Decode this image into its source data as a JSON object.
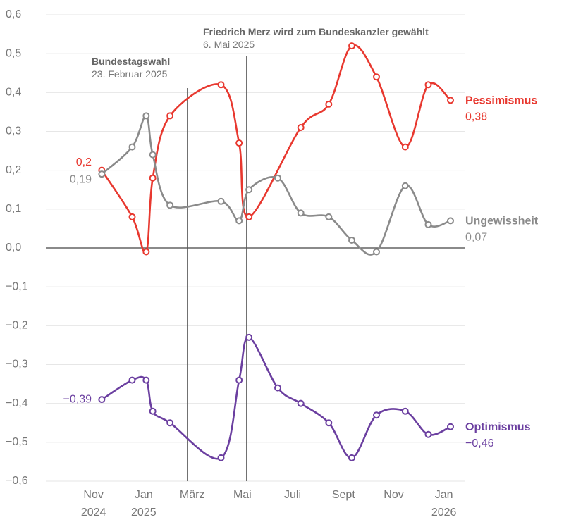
{
  "chart_data": {
    "type": "line",
    "ylim": [
      -0.6,
      0.6
    ],
    "yticks": [
      {
        "value": 0.6,
        "label": "0,6"
      },
      {
        "value": 0.5,
        "label": "0,5"
      },
      {
        "value": 0.4,
        "label": "0,4"
      },
      {
        "value": 0.3,
        "label": "0,3"
      },
      {
        "value": 0.2,
        "label": "0,2"
      },
      {
        "value": 0.1,
        "label": "0,1"
      },
      {
        "value": 0,
        "label": "0,0"
      },
      {
        "value": -0.1,
        "label": "−0,1"
      },
      {
        "value": -0.2,
        "label": "−0,2"
      },
      {
        "value": -0.3,
        "label": "−0,3"
      },
      {
        "value": -0.4,
        "label": "−0,4"
      },
      {
        "value": -0.5,
        "label": "−0,5"
      },
      {
        "value": -0.6,
        "label": "−0,6"
      }
    ],
    "xlim": [
      "2024-09-04",
      "2026-01-27"
    ],
    "xticks": [
      {
        "value": "2024-11-01",
        "label": "Nov\n2024"
      },
      {
        "value": "2025-01-01",
        "label": "Jan\n2025"
      },
      {
        "value": "2025-03-01",
        "label": "März"
      },
      {
        "value": "2025-05-01",
        "label": "Mai"
      },
      {
        "value": "2025-07-01",
        "label": "Juli"
      },
      {
        "value": "2025-09-01",
        "label": "Sept"
      },
      {
        "value": "2025-11-01",
        "label": "Nov"
      },
      {
        "value": "2026-01-01",
        "label": "Jan\n2026"
      }
    ],
    "grid": true,
    "annotations": [
      {
        "title": "Bundestagswahl",
        "text": "23. Februar 2025",
        "x": "2025-02-23"
      },
      {
        "title": "Friedrich Merz wird zum Bundeskanzler gewählt",
        "text": "6. Mai 2025",
        "x": "2025-05-06"
      }
    ],
    "series": [
      {
        "name": "Pessimismus",
        "color": "#e8382f",
        "x": [
          "2024-11-11",
          "2024-12-18",
          "2025-01-04",
          "2025-01-12",
          "2025-02-02",
          "2025-04-05",
          "2025-04-27",
          "2025-05-09",
          "2025-07-11",
          "2025-08-14",
          "2025-09-11",
          "2025-10-11",
          "2025-11-15",
          "2025-12-13",
          "2026-01-09"
        ],
        "values": [
          0.2,
          0.08,
          -0.01,
          0.18,
          0.34,
          0.42,
          0.27,
          0.08,
          0.31,
          0.37,
          0.52,
          0.44,
          0.26,
          0.42,
          0.38
        ],
        "value_labels": [
          "0,2",
          null,
          null,
          null,
          null,
          null,
          null,
          null,
          null,
          null,
          null,
          null,
          null,
          null,
          "0,38"
        ]
      },
      {
        "name": "Ungewissheit",
        "color": "#8a8a8a",
        "x": [
          "2024-11-11",
          "2024-12-18",
          "2025-01-04",
          "2025-01-12",
          "2025-02-02",
          "2025-04-05",
          "2025-04-27",
          "2025-05-09",
          "2025-06-13",
          "2025-07-11",
          "2025-08-14",
          "2025-09-11",
          "2025-10-11",
          "2025-11-15",
          "2025-12-13",
          "2026-01-09"
        ],
        "values": [
          0.19,
          0.26,
          0.34,
          0.24,
          0.11,
          0.12,
          0.07,
          0.15,
          0.18,
          0.09,
          0.08,
          0.02,
          -0.01,
          0.16,
          0.06,
          0.07
        ],
        "value_labels": [
          "0,19",
          null,
          null,
          null,
          null,
          null,
          null,
          null,
          null,
          null,
          null,
          null,
          null,
          null,
          null,
          "0,07"
        ]
      },
      {
        "name": "Optimismus",
        "color": "#6b3fa0",
        "x": [
          "2024-11-11",
          "2024-12-18",
          "2025-01-04",
          "2025-01-12",
          "2025-02-02",
          "2025-04-05",
          "2025-04-27",
          "2025-05-09",
          "2025-06-13",
          "2025-07-11",
          "2025-08-14",
          "2025-09-11",
          "2025-10-11",
          "2025-11-15",
          "2025-12-13",
          "2026-01-09"
        ],
        "values": [
          -0.39,
          -0.34,
          -0.34,
          -0.42,
          -0.45,
          -0.54,
          -0.34,
          -0.23,
          -0.36,
          -0.4,
          -0.45,
          -0.54,
          -0.43,
          -0.42,
          -0.48,
          -0.46
        ],
        "value_labels": [
          "−0,39",
          null,
          null,
          null,
          null,
          null,
          null,
          null,
          null,
          null,
          null,
          null,
          null,
          null,
          null,
          "−0,46"
        ]
      }
    ]
  }
}
